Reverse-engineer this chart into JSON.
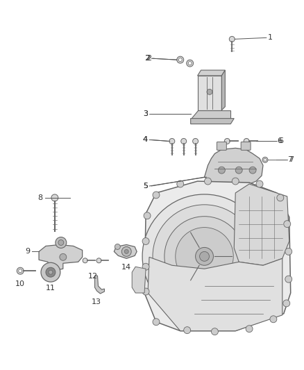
{
  "background_color": "#ffffff",
  "line_color": "#666666",
  "text_color": "#333333",
  "figsize": [
    4.38,
    5.33
  ],
  "dpi": 100,
  "label_fontsize": 8.0,
  "label_line_color": "#555555"
}
